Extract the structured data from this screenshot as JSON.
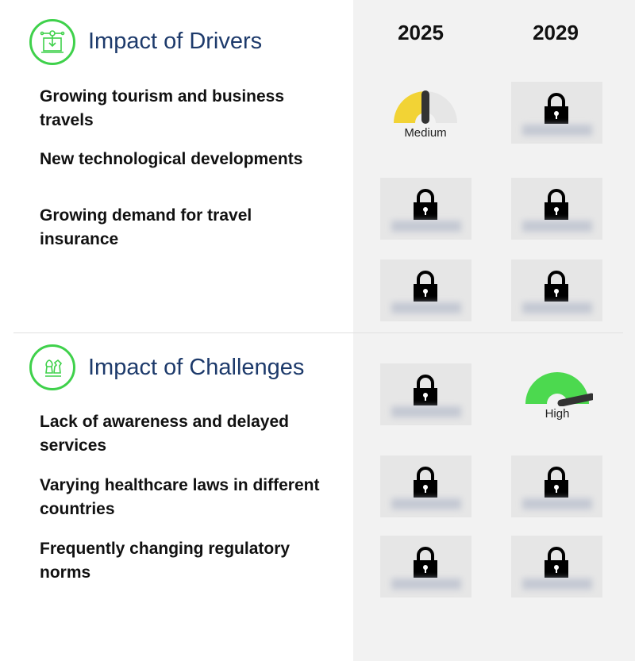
{
  "years": [
    "2025",
    "2029"
  ],
  "drivers": {
    "title": "Impact of Drivers",
    "icon": "laptop-circuit-icon",
    "items": [
      "Growing tourism and business travels",
      "New technological developments",
      "Growing demand for travel insurance"
    ]
  },
  "challenges": {
    "title": "Impact of Challenges",
    "icon": "chess-strategy-icon",
    "items": [
      "Lack of awareness and delayed services",
      "Varying healthcare laws in different countries",
      "Frequently changing regulatory norms"
    ]
  },
  "gauges": {
    "driver1_2025": {
      "label": "Medium",
      "color": "#f2d335"
    },
    "challenge1_2029": {
      "label": "High",
      "color": "#4cd94f"
    }
  },
  "locked_icon": "lock-icon"
}
